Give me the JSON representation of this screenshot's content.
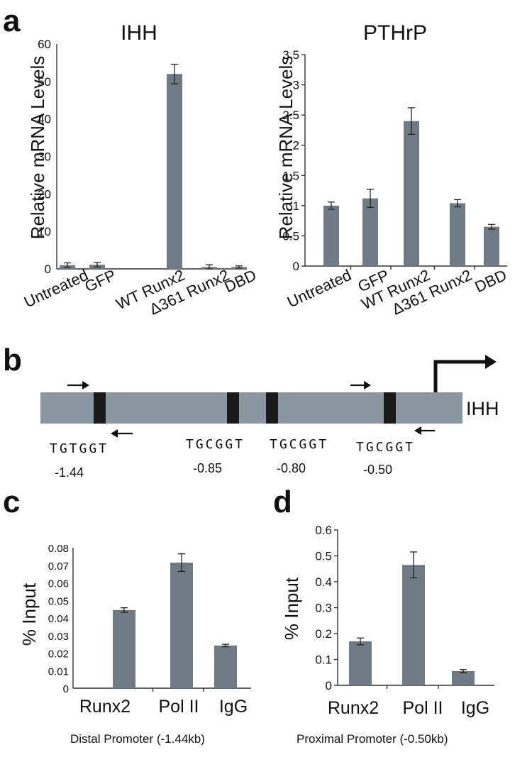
{
  "panels": {
    "a": "a",
    "b": "b",
    "c": "c",
    "d": "d"
  },
  "chart_data": [
    {
      "id": "ihh",
      "type": "bar",
      "title": "IHH",
      "ylabel": "Relative mRNA Levels",
      "categories": [
        "Untreated",
        "GFP",
        "WT Runx2",
        "Δ361 Runx2",
        "DBD"
      ],
      "values": [
        1.0,
        1.1,
        52.0,
        0.5,
        0.5
      ],
      "errors": [
        0.6,
        0.6,
        2.6,
        0.6,
        0.3
      ],
      "ylim": [
        0,
        60
      ],
      "yticks": [
        0,
        10,
        20,
        30,
        40,
        50,
        60
      ],
      "ytick_labels": [
        "0",
        "10",
        "20",
        "30",
        "40",
        "50",
        "60"
      ],
      "grid": false,
      "legend": "none"
    },
    {
      "id": "pthrp",
      "type": "bar",
      "title": "PTHrP",
      "ylabel": "Relative mRNA Levels",
      "categories": [
        "Untreated",
        "GFP",
        "WT Runx2",
        "Δ361 Runx2",
        "DBD"
      ],
      "values": [
        1.0,
        1.12,
        2.4,
        1.04,
        0.65
      ],
      "errors": [
        0.06,
        0.15,
        0.22,
        0.06,
        0.04
      ],
      "ylim": [
        0,
        3.5
      ],
      "yticks": [
        0,
        0.5,
        1,
        1.5,
        2,
        2.5,
        3,
        3.5
      ],
      "ytick_labels": [
        "0",
        "0.5",
        "1",
        "1.5",
        "2",
        "2.5",
        "3",
        "3.5"
      ],
      "grid": false,
      "legend": "none"
    },
    {
      "id": "distal",
      "type": "bar",
      "title": "",
      "ylabel": "% Input",
      "xlabel": "Distal  Promoter (-1.44kb)",
      "categories": [
        "Runx2",
        "Pol II",
        "IgG"
      ],
      "values": [
        0.0445,
        0.0715,
        0.0243
      ],
      "errors": [
        0.0013,
        0.005,
        0.0007
      ],
      "ylim": [
        0,
        0.08
      ],
      "yticks": [
        0,
        0.01,
        0.02,
        0.03,
        0.04,
        0.05,
        0.06,
        0.07,
        0.08
      ],
      "ytick_labels": [
        "0",
        "0.01",
        "0.02",
        "0.03",
        "0.04",
        "0.05",
        "0.06",
        "0.07",
        "0.08"
      ],
      "grid": false,
      "legend": "none"
    },
    {
      "id": "proximal",
      "type": "bar",
      "title": "",
      "ylabel": "% Input",
      "xlabel": "Proximal Promoter (-0.50kb)",
      "categories": [
        "Runx2",
        "Pol II",
        "IgG"
      ],
      "values": [
        0.17,
        0.465,
        0.055
      ],
      "errors": [
        0.013,
        0.05,
        0.006
      ],
      "ylim": [
        0,
        0.6
      ],
      "yticks": [
        0,
        0.1,
        0.2,
        0.3,
        0.4,
        0.5,
        0.6
      ],
      "ytick_labels": [
        "0",
        "0.1",
        "0.2",
        "0.3",
        "0.4",
        "0.5",
        "0.6"
      ],
      "grid": false,
      "legend": "none"
    }
  ],
  "promoter_diagram": {
    "gene": "IHH",
    "sites": [
      {
        "motif": "TGTGGT",
        "position": "-1.44"
      },
      {
        "motif": "TGCGGT",
        "position": "-0.85"
      },
      {
        "motif": "TGCGGT",
        "position": "-0.80"
      },
      {
        "motif": "TGCGGT",
        "position": "-0.50"
      }
    ],
    "colors": {
      "promoter": "#8a96a0",
      "site": "#1a1a1a",
      "arrow": "#111111"
    }
  },
  "colors": {
    "bar": "#6e7b85"
  }
}
